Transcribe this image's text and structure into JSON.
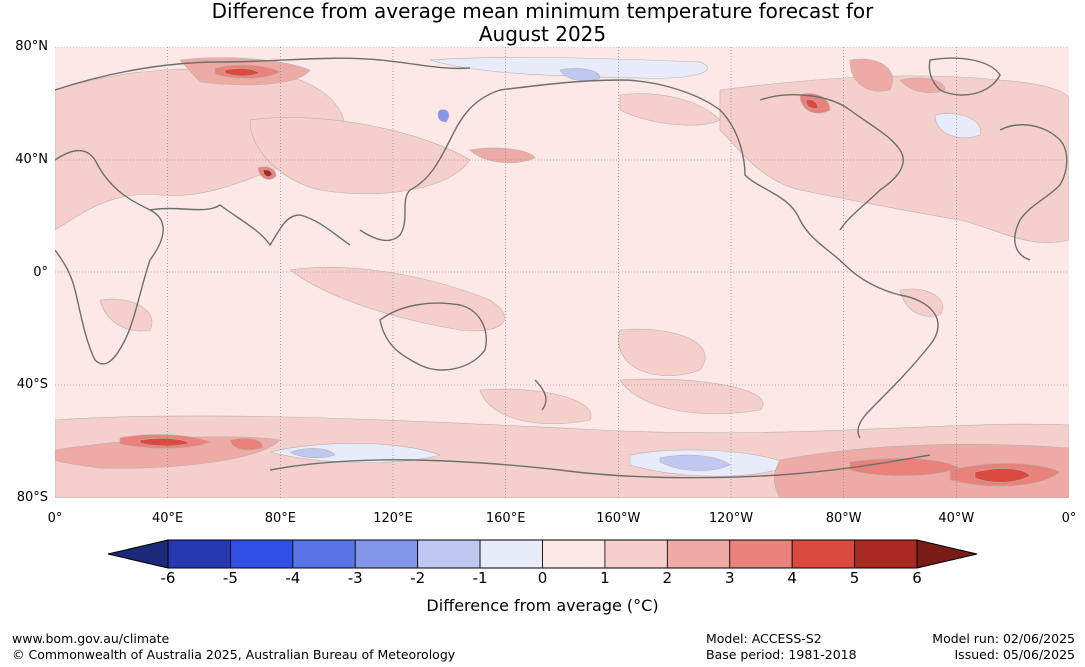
{
  "title_line1": "Difference from average mean minimum temperature forecast for",
  "title_line2": "August 2025",
  "map": {
    "lat_labels": [
      "80°N",
      "40°N",
      "0°",
      "40°S",
      "80°S"
    ],
    "lat_values": [
      80,
      40,
      0,
      -40,
      -80
    ],
    "lon_labels": [
      "0°",
      "40°E",
      "80°E",
      "120°E",
      "160°E",
      "160°W",
      "120°W",
      "80°W",
      "40°W",
      "0°"
    ],
    "lon_values": [
      0,
      40,
      80,
      120,
      160,
      200,
      240,
      280,
      320,
      360
    ],
    "lon_range": [
      0,
      360
    ],
    "lat_range": [
      -80,
      80
    ],
    "projection": "equirectangular",
    "gridlines": true
  },
  "colorbar": {
    "label": "Difference from average (°C)",
    "ticks": [
      "-6",
      "-5",
      "-4",
      "-3",
      "-2",
      "-1",
      "0",
      "1",
      "2",
      "3",
      "4",
      "5",
      "6"
    ],
    "low_extend_color": "#1b2a78",
    "high_extend_color": "#7a1c16",
    "colors": [
      "#2639b0",
      "#2f50e3",
      "#5974e6",
      "#8396ea",
      "#c0c8f2",
      "#e8ebfa",
      "#fce8e6",
      "#f5cfcc",
      "#eeaaa5",
      "#e8827a",
      "#db4a3f",
      "#a92a22"
    ]
  },
  "footer": {
    "site": "www.bom.gov.au/climate",
    "copyright": "© Commonwealth of Australia 2025, Australian Bureau of Meteorology",
    "model": "Model: ACCESS-S2",
    "base_period": "Base period: 1981-2018",
    "model_run": "Model run: 02/06/2025",
    "issued": "Issued: 05/06/2025"
  }
}
